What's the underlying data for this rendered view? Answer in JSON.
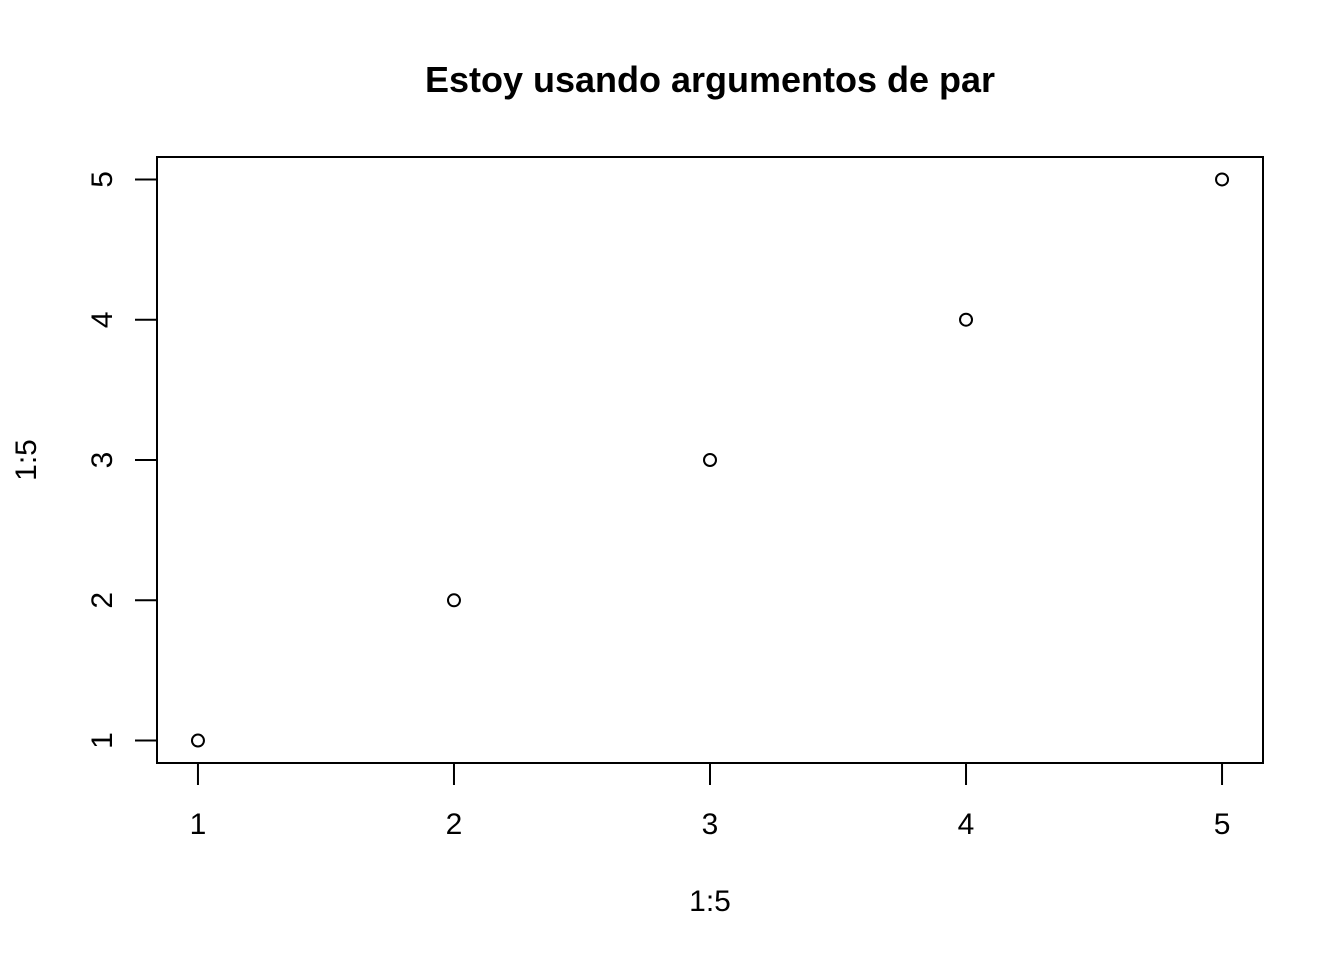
{
  "chart_data": {
    "type": "scatter",
    "title": "Estoy usando argumentos de par",
    "xlabel": "1:5",
    "ylabel": "1:5",
    "x": [
      1,
      2,
      3,
      4,
      5
    ],
    "y": [
      1,
      2,
      3,
      4,
      5
    ],
    "xlim": [
      0.84,
      5.16
    ],
    "ylim": [
      0.84,
      5.16
    ],
    "x_ticks": [
      1,
      2,
      3,
      4,
      5
    ],
    "y_ticks": [
      1,
      2,
      3,
      4,
      5
    ],
    "x_tick_labels": [
      "1",
      "2",
      "3",
      "4",
      "5"
    ],
    "y_tick_labels": [
      "1",
      "2",
      "3",
      "4",
      "5"
    ],
    "marker": "open-circle",
    "grid": false,
    "legend": "none",
    "colors": {
      "foreground": "#000000",
      "background": "#ffffff"
    }
  }
}
